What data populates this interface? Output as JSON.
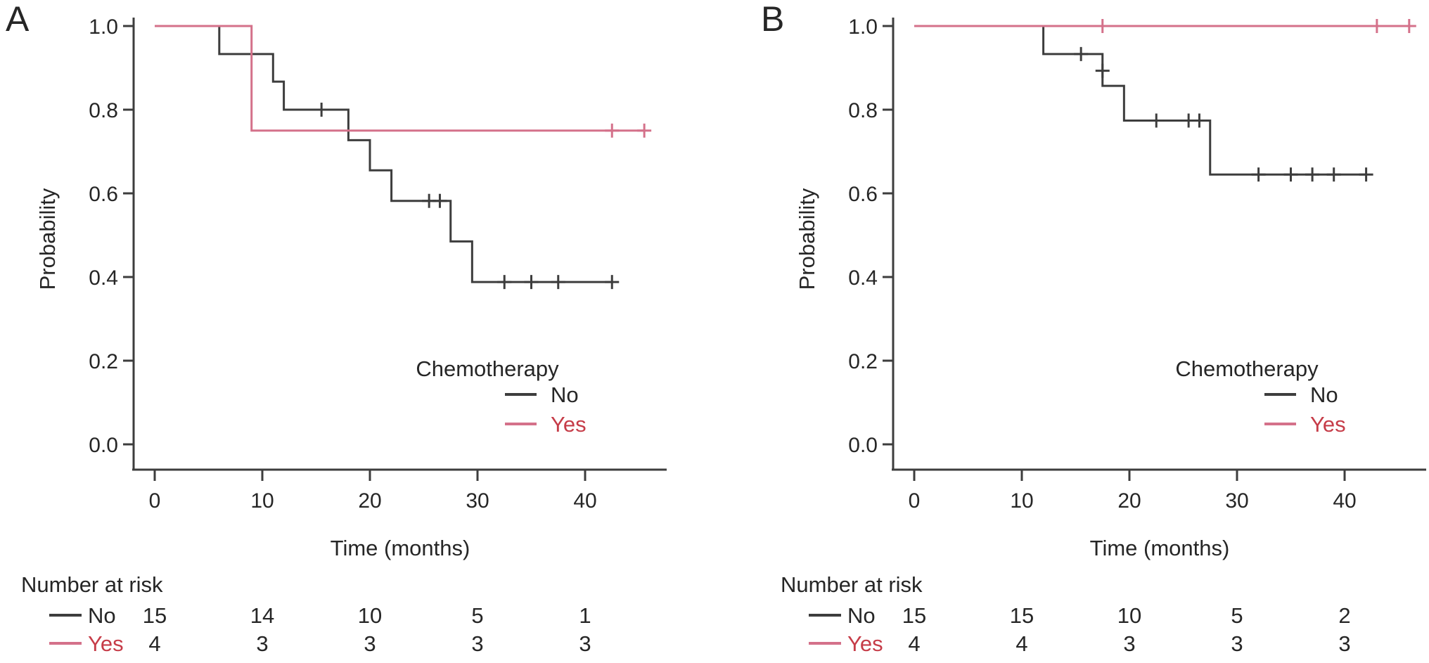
{
  "figure_title": "",
  "chart_data": [
    {
      "type": "line",
      "subtype": "kaplan-meier",
      "panel_label": "A",
      "xlabel": "Time (months)",
      "ylabel": "Probability",
      "x_ticks": [
        0,
        10,
        20,
        30,
        40
      ],
      "x_tick_labels": [
        "0",
        "10",
        "20",
        "30",
        "40"
      ],
      "y_ticks": [
        1.0,
        0.8,
        0.6,
        0.4,
        0.2,
        0.0
      ],
      "y_tick_labels": [
        "1.0",
        "0.8",
        "0.6",
        "0.4",
        "0.2",
        "0.0"
      ],
      "xlim": [
        0,
        46
      ],
      "ylim": [
        0,
        1.0
      ],
      "grid": false,
      "legend": {
        "title": "Chemotherapy",
        "position": "inside-lower-right",
        "entries": [
          {
            "label": "No",
            "line_color": "#3d3d3d",
            "text_color": "#262626"
          },
          {
            "label": "Yes",
            "line_color": "#d4718a",
            "text_color": "#c63c48"
          }
        ]
      },
      "series": [
        {
          "name": "No",
          "color": "#3d3d3d",
          "steps": [
            [
              0,
              1.0
            ],
            [
              6,
              0.933
            ],
            [
              11,
              0.867
            ],
            [
              12,
              0.8
            ],
            [
              18,
              0.727
            ],
            [
              20,
              0.655
            ],
            [
              22,
              0.582
            ],
            [
              27.5,
              0.485
            ],
            [
              29.5,
              0.388
            ]
          ],
          "end_time": 42.5,
          "censor_marks": [
            [
              15.5,
              0.8
            ],
            [
              25.5,
              0.582
            ],
            [
              26.5,
              0.582
            ],
            [
              32.5,
              0.388
            ],
            [
              35,
              0.388
            ],
            [
              37.5,
              0.388
            ],
            [
              42.5,
              0.388
            ]
          ]
        },
        {
          "name": "Yes",
          "color": "#d4718a",
          "steps": [
            [
              0,
              1.0
            ],
            [
              9,
              0.75
            ]
          ],
          "end_time": 45.5,
          "censor_marks": [
            [
              42.5,
              0.75
            ],
            [
              45.5,
              0.75
            ]
          ]
        }
      ],
      "risk_table": {
        "header": "Number at risk",
        "times": [
          0,
          10,
          20,
          30,
          40
        ],
        "rows": [
          {
            "label": "No",
            "text_color": "#262626",
            "line_color": "#3d3d3d",
            "counts": [
              15,
              14,
              10,
              5,
              1
            ]
          },
          {
            "label": "Yes",
            "text_color": "#c63c48",
            "line_color": "#d4718a",
            "counts": [
              4,
              3,
              3,
              3,
              3
            ]
          }
        ]
      }
    },
    {
      "type": "line",
      "subtype": "kaplan-meier",
      "panel_label": "B",
      "xlabel": "Time (months)",
      "ylabel": "Probability",
      "x_ticks": [
        0,
        10,
        20,
        30,
        40
      ],
      "x_tick_labels": [
        "0",
        "10",
        "20",
        "30",
        "40"
      ],
      "y_ticks": [
        1.0,
        0.8,
        0.6,
        0.4,
        0.2,
        0.0
      ],
      "y_tick_labels": [
        "1.0",
        "0.8",
        "0.6",
        "0.4",
        "0.2",
        "0.0"
      ],
      "xlim": [
        0,
        46
      ],
      "ylim": [
        0,
        1.0
      ],
      "grid": false,
      "legend": {
        "title": "Chemotherapy",
        "position": "inside-lower-right",
        "entries": [
          {
            "label": "No",
            "line_color": "#3d3d3d",
            "text_color": "#262626"
          },
          {
            "label": "Yes",
            "line_color": "#d4718a",
            "text_color": "#c63c48"
          }
        ]
      },
      "series": [
        {
          "name": "No",
          "color": "#3d3d3d",
          "steps": [
            [
              0,
              1.0
            ],
            [
              12,
              0.933
            ],
            [
              17.5,
              0.857
            ],
            [
              19.5,
              0.774
            ],
            [
              27.5,
              0.645
            ]
          ],
          "end_time": 42,
          "censor_marks": [
            [
              15.5,
              0.933
            ],
            [
              17.5,
              0.893
            ],
            [
              22.5,
              0.774
            ],
            [
              25.5,
              0.774
            ],
            [
              26.5,
              0.774
            ],
            [
              32,
              0.645
            ],
            [
              35,
              0.645
            ],
            [
              37,
              0.645
            ],
            [
              39,
              0.645
            ],
            [
              42,
              0.645
            ]
          ]
        },
        {
          "name": "Yes",
          "color": "#d4718a",
          "steps": [
            [
              0,
              1.0
            ]
          ],
          "end_time": 46,
          "censor_marks": [
            [
              17.5,
              1.0
            ],
            [
              43,
              1.0
            ],
            [
              46,
              1.0
            ]
          ]
        }
      ],
      "risk_table": {
        "header": "Number at risk",
        "times": [
          0,
          10,
          20,
          30,
          40
        ],
        "rows": [
          {
            "label": "No",
            "text_color": "#262626",
            "line_color": "#3d3d3d",
            "counts": [
              15,
              15,
              10,
              5,
              2
            ]
          },
          {
            "label": "Yes",
            "text_color": "#c63c48",
            "line_color": "#d4718a",
            "counts": [
              4,
              4,
              3,
              3,
              3
            ]
          }
        ]
      }
    }
  ]
}
